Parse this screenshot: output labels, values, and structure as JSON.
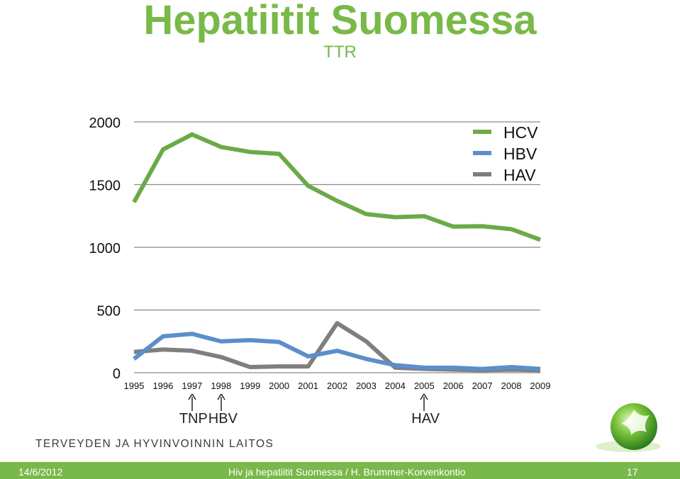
{
  "slide": {
    "title": "Hepatiitit Suomessa",
    "subtitle": "TTR",
    "organization": "TERVEYDEN JA HYVINVOINNIN LAITOS",
    "footer": {
      "date": "14/6/2012",
      "center": "Hiv ja hepatiitit Suomessa / H. Brummer-Korvenkontio",
      "page": "17"
    },
    "markers": [
      {
        "label": "TNP",
        "year": 1997
      },
      {
        "label": "HBV",
        "year": 1998
      },
      {
        "label": "HAV",
        "year": 2005
      }
    ]
  },
  "chart_data": {
    "type": "line",
    "x": [
      1995,
      1996,
      1997,
      1998,
      1999,
      2000,
      2001,
      2002,
      2003,
      2004,
      2005,
      2006,
      2007,
      2008,
      2009
    ],
    "ylim": [
      0,
      2000
    ],
    "yticks": [
      0,
      500,
      1000,
      1500,
      2000
    ],
    "grid": true,
    "legend_position": "top-right",
    "series": [
      {
        "name": "HCV",
        "color": "#6aaa47",
        "values": [
          1360,
          1780,
          1900,
          1800,
          1760,
          1745,
          1490,
          1370,
          1265,
          1240,
          1248,
          1165,
          1168,
          1145,
          1060
        ]
      },
      {
        "name": "HBV",
        "color": "#5b8fcb",
        "values": [
          110,
          290,
          310,
          250,
          260,
          245,
          130,
          175,
          110,
          60,
          40,
          40,
          30,
          45,
          30
        ]
      },
      {
        "name": "HAV",
        "color": "#7f7f7f",
        "values": [
          165,
          185,
          175,
          125,
          45,
          50,
          50,
          395,
          250,
          40,
          30,
          25,
          20,
          25,
          20
        ]
      }
    ]
  }
}
